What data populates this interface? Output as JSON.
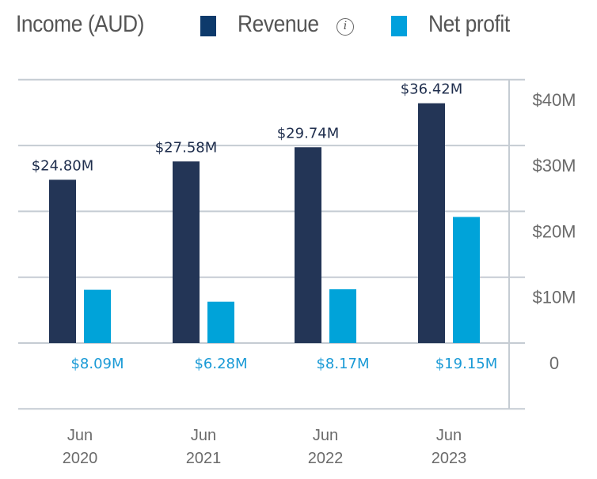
{
  "legend": {
    "title": "Income (AUD)",
    "items": [
      {
        "label": "Revenue",
        "color": "#0d3a6b",
        "has_info_icon": true,
        "icon": "info-icon"
      },
      {
        "label": "Net profit",
        "color": "#00a0dc"
      }
    ]
  },
  "chart_data": {
    "type": "bar",
    "title": "Income (AUD)",
    "xlabel": "",
    "ylabel": "",
    "categories": [
      [
        "Jun",
        "2020"
      ],
      [
        "Jun",
        "2021"
      ],
      [
        "Jun",
        "2022"
      ],
      [
        "Jun",
        "2023"
      ]
    ],
    "series": [
      {
        "name": "Revenue",
        "color": "#233556",
        "label_color": "#1f2e4d",
        "values": [
          24.8,
          27.58,
          29.74,
          36.42
        ],
        "labels": [
          "$24.80M",
          "$27.58M",
          "$29.74M",
          "$36.42M"
        ]
      },
      {
        "name": "Net profit",
        "color": "#00a3d9",
        "label_color": "#1a9ad6",
        "values": [
          8.09,
          6.28,
          8.17,
          19.15
        ],
        "labels": [
          "$8.09M",
          "$6.28M",
          "$8.17M",
          "$19.15M"
        ]
      }
    ],
    "ylim": [
      -10,
      40
    ],
    "yticks": [
      {
        "value": 40,
        "label": "$40M"
      },
      {
        "value": 30,
        "label": "$30M"
      },
      {
        "value": 20,
        "label": "$20M"
      },
      {
        "value": 10,
        "label": "$10M"
      },
      {
        "value": 0,
        "label": "0"
      }
    ],
    "y_axis_position": "right",
    "grid": true,
    "legend_position": "top"
  }
}
